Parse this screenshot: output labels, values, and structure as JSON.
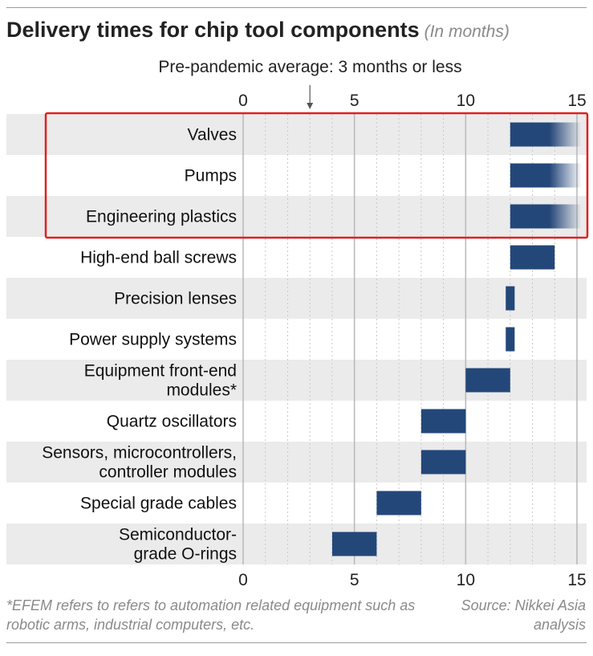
{
  "title": "Delivery times for chip tool components",
  "title_unit": "(In months)",
  "subtitle": "Pre-pandemic average: 3 months or less",
  "footnote": "*EFEM refers to refers to automation related equipment such as robotic arms, industrial computers, etc.",
  "source": "Source: Nikkei Asia analysis",
  "colors": {
    "bar": "#24477a",
    "band": "#ebebeb",
    "highlight": "#e02020",
    "grid_major": "#b8b8b8",
    "grid_minor": "#c9c9c9"
  },
  "chart_data": {
    "type": "bar",
    "orientation": "horizontal",
    "title": "Delivery times for chip tool components",
    "xlabel": "",
    "ylabel": "",
    "xlim": [
      0,
      15
    ],
    "x_ticks": [
      0,
      5,
      10,
      15
    ],
    "grid": true,
    "reference_line": {
      "value": 3,
      "label": "Pre-pandemic average: 3 months or less"
    },
    "categories": [
      [
        "Valves"
      ],
      [
        "Pumps"
      ],
      [
        "Engineering plastics"
      ],
      [
        "High-end ball screws"
      ],
      [
        "Precision lenses"
      ],
      [
        "Power supply systems"
      ],
      [
        "Equipment front-end",
        "modules*"
      ],
      [
        "Quartz oscillators"
      ],
      [
        "Sensors, microcontrollers,",
        "controller modules"
      ],
      [
        "Special grade cables"
      ],
      [
        "Semiconductor-",
        "grade O-rings"
      ]
    ],
    "ranges": [
      [
        12,
        15
      ],
      [
        12,
        15
      ],
      [
        12,
        15
      ],
      [
        12,
        14
      ],
      [
        11.8,
        12.2
      ],
      [
        11.8,
        12.2
      ],
      [
        10,
        12
      ],
      [
        8,
        10
      ],
      [
        8,
        10
      ],
      [
        6,
        8
      ],
      [
        4,
        6
      ]
    ],
    "open_ended": [
      true,
      true,
      true,
      false,
      false,
      false,
      false,
      false,
      false,
      false,
      false
    ],
    "highlighted": [
      "Valves",
      "Pumps",
      "Engineering plastics"
    ]
  }
}
